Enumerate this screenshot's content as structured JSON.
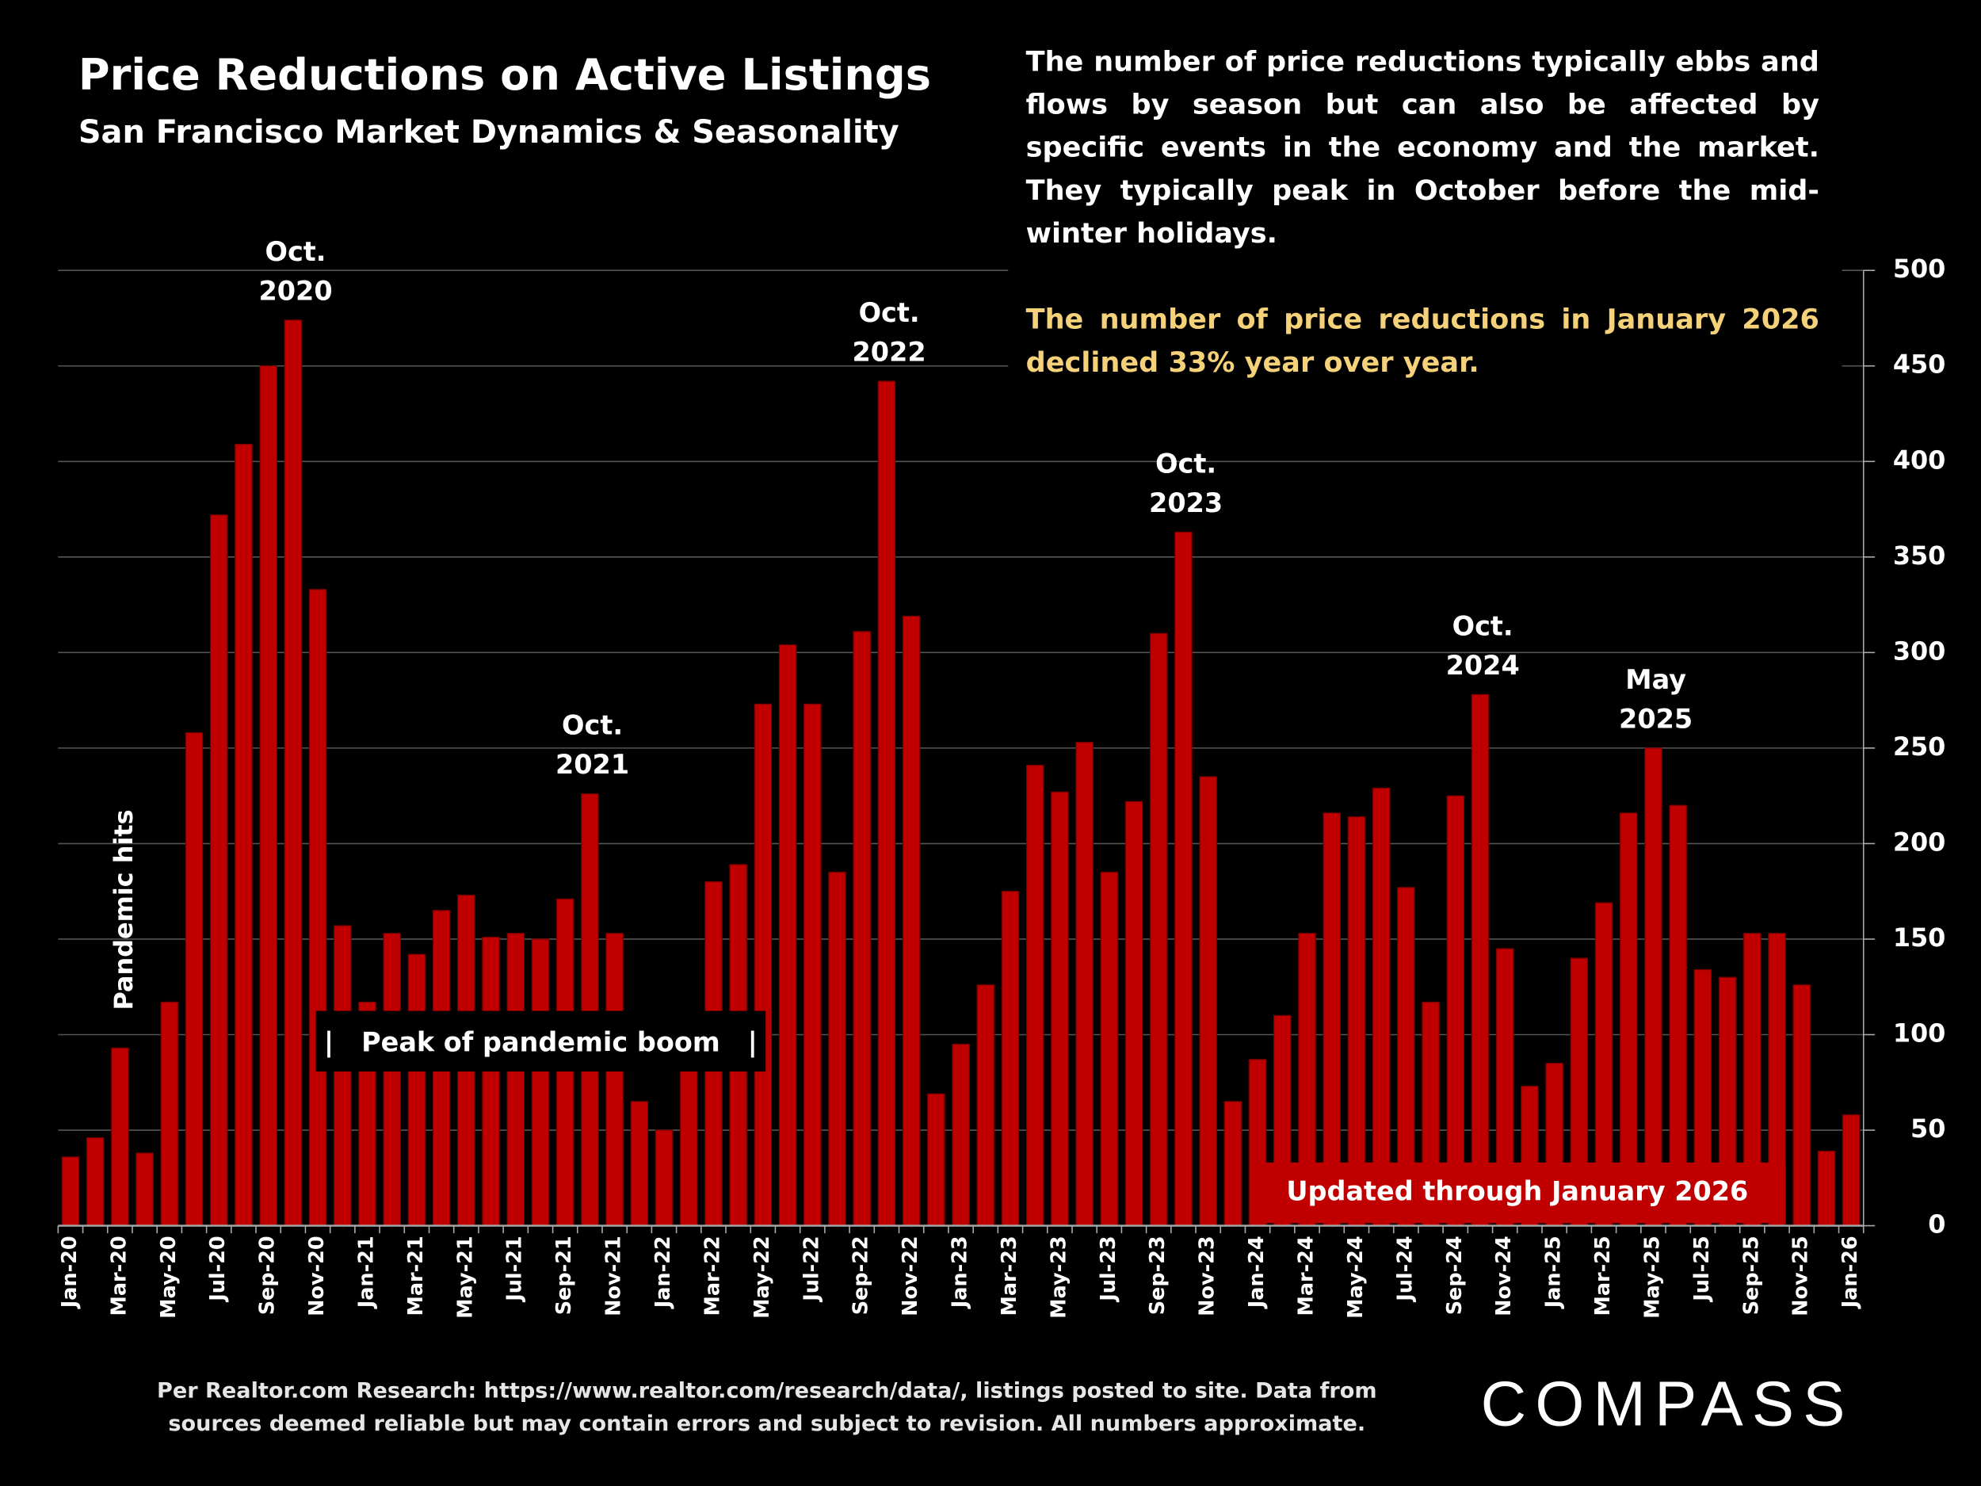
{
  "chart_data": {
    "type": "bar",
    "title": "Price Reductions on Active Listings",
    "subtitle": "San Francisco Market Dynamics & Seasonality",
    "description": "The number of price reductions typically ebbs and flows by season but can also be affected by specific events in the economy and the market. They typically peak in October before the mid-winter holidays.",
    "highlight": "The number of price reductions in January 2026 declined 33% year over year.",
    "categories": [
      "Jan-20",
      null,
      "Mar-20",
      null,
      "May-20",
      null,
      "Jul-20",
      null,
      "Sep-20",
      null,
      "Nov-20",
      null,
      "Jan-21",
      null,
      "Mar-21",
      null,
      "May-21",
      null,
      "Jul-21",
      null,
      "Sep-21",
      null,
      "Nov-21",
      null,
      "Jan-22",
      null,
      "Mar-22",
      null,
      "May-22",
      null,
      "Jul-22",
      null,
      "Sep-22",
      null,
      "Nov-22",
      null,
      "Jan-23",
      null,
      "Mar-23",
      null,
      "May-23",
      null,
      "Jul-23",
      null,
      "Sep-23",
      null,
      "Nov-23",
      null,
      "Jan-24",
      null,
      "Mar-24",
      null,
      "May-24",
      null,
      "Jul-24",
      null,
      "Sep-24",
      null,
      "Nov-24",
      null,
      "Jan-25",
      null,
      "Mar-25",
      null,
      "May-25",
      null,
      "Jul-25",
      null,
      "Sep-25",
      null,
      "Nov-25",
      null,
      "Jan-26"
    ],
    "values": [
      36,
      46,
      93,
      38,
      117,
      258,
      372,
      409,
      450,
      474,
      333,
      157,
      117,
      153,
      142,
      165,
      173,
      151,
      153,
      150,
      171,
      226,
      153,
      65,
      50,
      85,
      180,
      189,
      273,
      304,
      273,
      185,
      311,
      442,
      319,
      69,
      95,
      126,
      175,
      241,
      227,
      253,
      185,
      222,
      310,
      363,
      235,
      65,
      87,
      110,
      153,
      216,
      214,
      229,
      177,
      117,
      225,
      278,
      145,
      73,
      85,
      140,
      169,
      216,
      250,
      220,
      134,
      130,
      153,
      153,
      126,
      39,
      58
    ],
    "color": "#c00000",
    "ylim": [
      0,
      500
    ],
    "yticks": [
      0,
      50,
      100,
      150,
      200,
      250,
      300,
      350,
      400,
      450,
      500
    ],
    "grid": true,
    "annotations": [
      [
        "Oct.",
        "2020"
      ],
      [
        "Oct.",
        "2021"
      ],
      [
        "Oct.",
        "2022"
      ],
      [
        "Oct.",
        "2023"
      ],
      [
        "Oct.",
        "2024"
      ],
      [
        "May",
        "2025"
      ]
    ],
    "pandemic_note": "Pandemic hits",
    "boom_note": "|   Peak of pandemic boom   |",
    "updated_note": "Updated through January 2026",
    "footnote": [
      "Per Realtor.com Research:  https://www.realtor.com/research/data/, listings posted to site. Data from",
      "sources deemed reliable but may contain errors and subject to revision. All numbers approximate."
    ],
    "logo": "COMPASS"
  }
}
